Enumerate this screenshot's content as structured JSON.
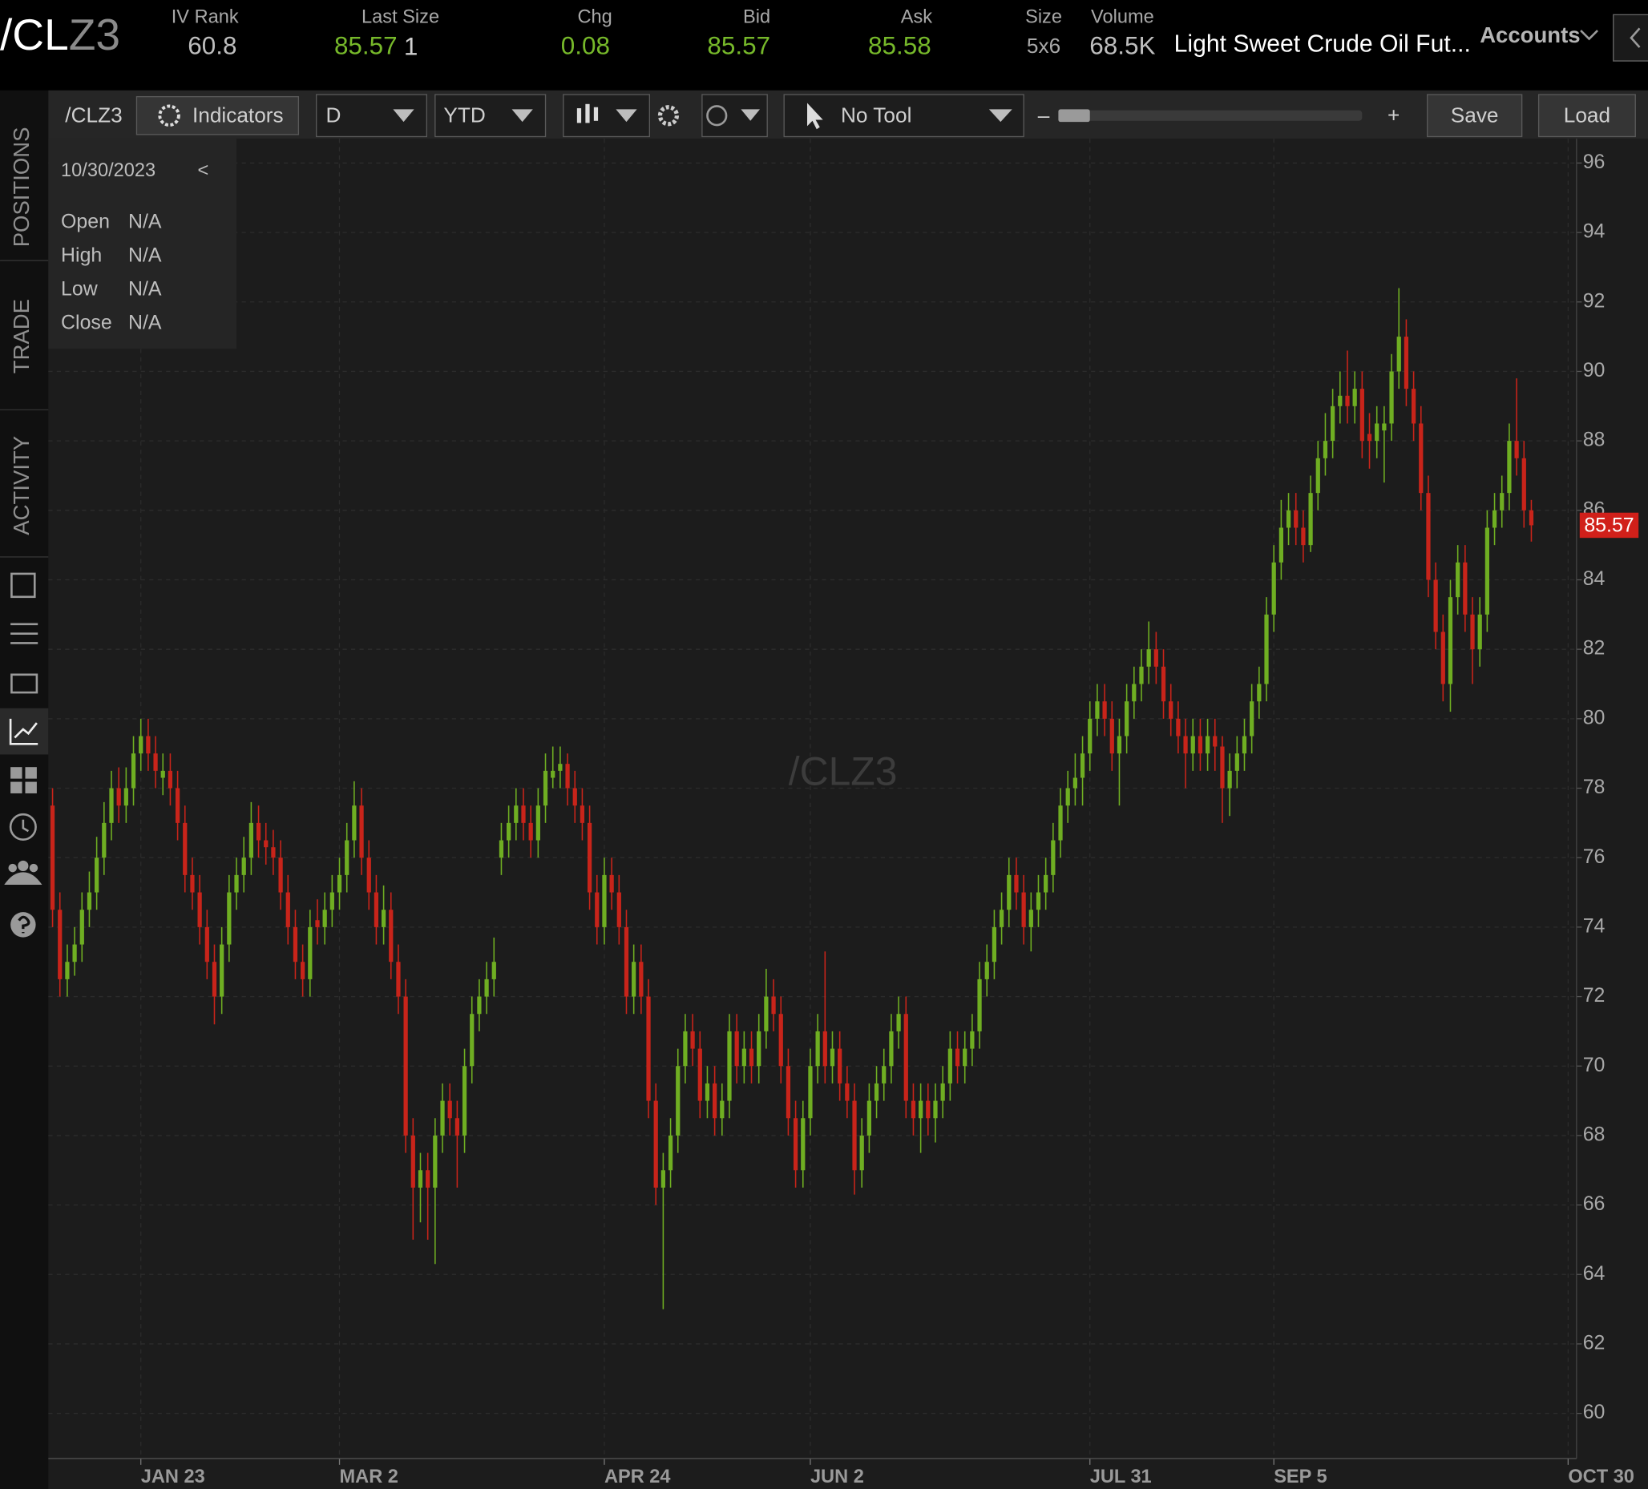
{
  "header": {
    "symbol_root": "/CL",
    "symbol_month": "Z3",
    "iv_rank_label": "IV Rank",
    "iv_rank": 60.8,
    "last_size_label": "Last Size",
    "last": 85.57,
    "size_last": 1,
    "chg_label": "Chg",
    "chg": 0.08,
    "bid_label": "Bid",
    "bid": 85.57,
    "ask_label": "Ask",
    "ask": 85.58,
    "size_label": "Size",
    "size": "5x6",
    "volume_label": "Volume",
    "volume": "68.5K",
    "description": "Light Sweet Crude Oil Fut...",
    "accounts": "Accounts"
  },
  "toolbar": {
    "symbol": "/CLZ3",
    "indicators": "Indicators",
    "aggregation": "D",
    "range": "YTD",
    "tool": "No Tool",
    "zoom_out": "–",
    "zoom_in": "+",
    "save": "Save",
    "load": "Load"
  },
  "info_panel": {
    "date": "10/30/2023",
    "collapse": "<",
    "rows": [
      {
        "label": "Open",
        "value": "N/A"
      },
      {
        "label": "High",
        "value": "N/A"
      },
      {
        "label": "Low",
        "value": "N/A"
      },
      {
        "label": "Close",
        "value": "N/A"
      }
    ]
  },
  "sidebar": {
    "tabs": [
      "POSITIONS",
      "TRADE",
      "ACTIVITY"
    ]
  },
  "chart_data": {
    "type": "candlestick",
    "watermark": "/CLZ3",
    "up_color": "#6fae22",
    "down_color": "#c8241a",
    "grid": true,
    "ylim": [
      58.7,
      96.7
    ],
    "yticks": [
      60,
      62,
      64,
      66,
      68,
      70,
      72,
      74,
      76,
      78,
      80,
      82,
      84,
      86,
      88,
      90,
      92,
      94,
      96
    ],
    "categories": [
      null,
      null,
      null,
      null,
      null,
      null,
      null,
      null,
      null,
      null,
      null,
      null,
      "JAN 23",
      null,
      null,
      null,
      null,
      null,
      null,
      null,
      null,
      null,
      null,
      null,
      null,
      null,
      null,
      null,
      null,
      null,
      null,
      null,
      null,
      null,
      null,
      null,
      null,
      null,
      null,
      "MAR 2",
      null,
      null,
      null,
      null,
      null,
      null,
      null,
      null,
      null,
      null,
      null,
      null,
      null,
      null,
      null,
      null,
      null,
      null,
      null,
      null,
      null,
      null,
      null,
      null,
      null,
      null,
      null,
      null,
      null,
      null,
      null,
      null,
      null,
      null,
      null,
      "APR 24",
      null,
      null,
      null,
      null,
      null,
      null,
      null,
      null,
      null,
      null,
      null,
      null,
      null,
      null,
      null,
      null,
      null,
      null,
      null,
      null,
      null,
      null,
      null,
      null,
      null,
      null,
      null,
      "JUN 2",
      null,
      null,
      null,
      null,
      null,
      null,
      null,
      null,
      null,
      null,
      null,
      null,
      null,
      null,
      null,
      null,
      null,
      null,
      null,
      null,
      null,
      null,
      null,
      null,
      null,
      null,
      null,
      null,
      null,
      null,
      null,
      null,
      null,
      null,
      null,
      null,
      null,
      "JUL 31",
      null,
      null,
      null,
      null,
      null,
      null,
      null,
      null,
      null,
      null,
      null,
      null,
      null,
      null,
      null,
      null,
      null,
      null,
      null,
      null,
      null,
      null,
      null,
      null,
      "SEP 5",
      null,
      null,
      null,
      null,
      null,
      null,
      null,
      null,
      null,
      null,
      null,
      null,
      null,
      null,
      null,
      null,
      null,
      null,
      null,
      null,
      null,
      null,
      null,
      null,
      null,
      null,
      null,
      null,
      null,
      null,
      null,
      null,
      null,
      null,
      null,
      null,
      null,
      null,
      null,
      "OCT 30"
    ],
    "ohlc": [
      [
        77.5,
        78,
        74,
        74.5
      ],
      [
        74.5,
        75,
        72,
        72.5
      ],
      [
        72.5,
        73.5,
        72,
        73
      ],
      [
        73,
        74,
        72.6,
        73.5
      ],
      [
        73.5,
        75,
        73,
        74.5
      ],
      [
        74.5,
        75.6,
        74,
        75
      ],
      [
        75,
        76.6,
        74.5,
        76
      ],
      [
        76,
        77.6,
        75.5,
        77
      ],
      [
        77,
        78.5,
        76.5,
        78
      ],
      [
        78,
        78.6,
        77,
        77.5
      ],
      [
        77.5,
        78.6,
        77,
        78
      ],
      [
        78,
        79.5,
        77.5,
        79
      ],
      [
        79,
        80,
        78.5,
        79.5
      ],
      [
        79.5,
        80,
        78.5,
        79
      ],
      [
        79,
        79.5,
        78,
        78.5
      ],
      [
        78.3,
        79,
        77.8,
        78.5
      ],
      [
        78.5,
        79,
        77.5,
        78
      ],
      [
        78,
        78.5,
        76.5,
        77
      ],
      [
        77,
        77.5,
        75,
        75.5
      ],
      [
        75.5,
        76,
        74.5,
        75
      ],
      [
        75,
        75.5,
        73.5,
        74
      ],
      [
        74,
        74.5,
        72.5,
        73
      ],
      [
        73,
        73.5,
        71.2,
        72
      ],
      [
        72,
        74,
        71.5,
        73.5
      ],
      [
        73.5,
        75.5,
        73,
        75
      ],
      [
        75,
        76,
        74.5,
        75.5
      ],
      [
        75.5,
        76.6,
        75,
        76
      ],
      [
        76,
        77.6,
        75.5,
        77
      ],
      [
        77,
        77.5,
        76,
        76.5
      ],
      [
        76.5,
        77,
        75.8,
        76.3
      ],
      [
        76.3,
        76.8,
        75.5,
        76
      ],
      [
        76,
        76.5,
        74.5,
        75
      ],
      [
        75,
        75.5,
        73.5,
        74
      ],
      [
        74,
        74.5,
        72.5,
        73
      ],
      [
        73,
        73.5,
        72,
        72.5
      ],
      [
        72.5,
        74.5,
        72,
        74
      ],
      [
        74.2,
        74.8,
        73.5,
        74
      ],
      [
        74,
        75,
        73.5,
        74.5
      ],
      [
        74.5,
        75.5,
        74,
        75
      ],
      [
        75,
        76,
        74.5,
        75.5
      ],
      [
        75.5,
        77,
        75,
        76.5
      ],
      [
        76.5,
        78.2,
        76,
        77.5
      ],
      [
        77.5,
        78,
        75.5,
        76
      ],
      [
        76,
        76.5,
        74.5,
        75
      ],
      [
        75,
        75.5,
        73.5,
        74
      ],
      [
        74,
        75.2,
        73.5,
        74.5
      ],
      [
        74.5,
        75,
        72.5,
        73
      ],
      [
        73,
        73.5,
        71.5,
        72
      ],
      [
        72,
        72.5,
        67.5,
        68
      ],
      [
        68,
        68.5,
        65,
        66.5
      ],
      [
        66.5,
        67.5,
        65.5,
        67
      ],
      [
        67,
        67.5,
        65,
        66.5
      ],
      [
        66.5,
        68.5,
        64.3,
        68
      ],
      [
        68,
        69.5,
        67.5,
        69
      ],
      [
        69,
        69.5,
        68,
        68.5
      ],
      [
        68.5,
        69,
        66.5,
        68
      ],
      [
        68,
        70.5,
        67.5,
        70
      ],
      [
        70,
        72,
        69.5,
        71.5
      ],
      [
        71.5,
        72.5,
        71,
        72
      ],
      [
        72,
        73,
        71.5,
        72.5
      ],
      [
        72.5,
        73.7,
        72,
        73
      ],
      [
        76,
        77,
        75.5,
        76.5
      ],
      [
        76.5,
        77.5,
        76,
        77
      ],
      [
        77,
        78,
        76.5,
        77.5
      ],
      [
        77.5,
        78,
        76.5,
        77
      ],
      [
        77,
        77.5,
        76,
        76.5
      ],
      [
        76.5,
        78,
        76,
        77.5
      ],
      [
        77.5,
        79,
        77,
        78.5
      ],
      [
        78.3,
        79.2,
        78,
        78.5
      ],
      [
        78.5,
        79.2,
        78,
        78.7
      ],
      [
        78.7,
        79,
        77.5,
        78
      ],
      [
        78,
        78.5,
        77,
        77.5
      ],
      [
        77.5,
        78,
        76.5,
        77
      ],
      [
        77,
        77.5,
        74.5,
        75
      ],
      [
        75,
        75.5,
        73.5,
        74
      ],
      [
        74,
        76,
        73.5,
        75.5
      ],
      [
        75.5,
        76,
        74.5,
        75
      ],
      [
        75,
        75.5,
        73.5,
        74
      ],
      [
        74,
        74.5,
        71.5,
        72
      ],
      [
        72,
        73.5,
        71.5,
        73
      ],
      [
        73,
        73.5,
        71.5,
        72
      ],
      [
        72,
        72.5,
        68.5,
        69
      ],
      [
        69,
        69.5,
        66,
        66.5
      ],
      [
        66.5,
        67.5,
        63,
        67
      ],
      [
        67,
        68.5,
        66.5,
        68
      ],
      [
        68,
        70.5,
        67.5,
        70
      ],
      [
        70,
        71.5,
        69.5,
        71
      ],
      [
        71,
        71.5,
        70,
        70.5
      ],
      [
        70.5,
        71,
        68.5,
        69
      ],
      [
        69,
        70,
        68.5,
        69.5
      ],
      [
        69.5,
        70,
        68,
        68.5
      ],
      [
        68.5,
        69.5,
        68,
        69
      ],
      [
        69,
        71.5,
        68.5,
        71
      ],
      [
        71,
        71.5,
        69.5,
        70
      ],
      [
        70,
        71,
        69.5,
        70.5
      ],
      [
        70.5,
        71,
        69.5,
        70
      ],
      [
        70,
        71.5,
        69.5,
        71
      ],
      [
        71,
        72.8,
        70.5,
        72
      ],
      [
        72,
        72.5,
        71,
        71.5
      ],
      [
        71.5,
        72,
        69.5,
        70
      ],
      [
        70,
        70.5,
        68,
        68.5
      ],
      [
        68.5,
        69,
        66.5,
        67
      ],
      [
        67,
        69,
        66.5,
        68.5
      ],
      [
        68.5,
        70.5,
        68,
        70
      ],
      [
        70,
        71.5,
        69.5,
        71
      ],
      [
        71,
        73.3,
        69.5,
        70
      ],
      [
        70,
        71,
        69.5,
        70.5
      ],
      [
        70.5,
        71,
        69,
        69.5
      ],
      [
        69.5,
        70,
        68.5,
        69
      ],
      [
        69,
        69.5,
        66.3,
        67
      ],
      [
        67,
        68.5,
        66.5,
        68
      ],
      [
        68,
        69.5,
        67.5,
        69
      ],
      [
        69,
        70,
        68.5,
        69.5
      ],
      [
        69.5,
        70.5,
        69,
        70
      ],
      [
        70,
        71.5,
        69.5,
        71
      ],
      [
        71,
        72,
        70.5,
        71.5
      ],
      [
        71.5,
        72,
        68.5,
        69
      ],
      [
        69,
        69.5,
        68,
        68.5
      ],
      [
        68.5,
        69.5,
        67.5,
        69
      ],
      [
        69,
        69.5,
        68,
        68.5
      ],
      [
        68.5,
        69.5,
        67.8,
        69
      ],
      [
        69,
        70,
        68.5,
        69.5
      ],
      [
        69.5,
        71,
        69,
        70.5
      ],
      [
        70.5,
        71,
        69.5,
        70
      ],
      [
        70,
        71,
        69.5,
        70.5
      ],
      [
        70.5,
        71.5,
        70,
        71
      ],
      [
        71,
        73,
        70.5,
        72.5
      ],
      [
        72.5,
        73.5,
        72,
        73
      ],
      [
        73,
        74.5,
        72.5,
        74
      ],
      [
        74,
        75,
        73.5,
        74.5
      ],
      [
        74.5,
        76,
        74,
        75.5
      ],
      [
        75.5,
        76,
        74.5,
        75
      ],
      [
        75,
        75.5,
        73.5,
        74
      ],
      [
        74,
        75,
        73.3,
        74.5
      ],
      [
        74.5,
        75.5,
        74,
        75
      ],
      [
        75,
        76,
        74.5,
        75.5
      ],
      [
        75.5,
        77,
        75,
        76.5
      ],
      [
        76.5,
        78,
        76,
        77.5
      ],
      [
        77.5,
        78.5,
        77,
        78
      ],
      [
        78,
        79,
        77.5,
        78.3
      ],
      [
        78.3,
        79.5,
        77.5,
        79
      ],
      [
        79,
        80.5,
        78.5,
        80
      ],
      [
        80,
        81,
        79.5,
        80.5
      ],
      [
        80.5,
        81,
        79.5,
        80
      ],
      [
        80,
        80.5,
        78.5,
        79
      ],
      [
        79,
        80,
        77.5,
        79.5
      ],
      [
        79.5,
        81,
        79,
        80.5
      ],
      [
        80.5,
        81.5,
        80,
        81
      ],
      [
        81,
        82,
        80.5,
        81.5
      ],
      [
        81.5,
        82.8,
        81,
        82
      ],
      [
        82,
        82.5,
        81,
        81.5
      ],
      [
        81.5,
        82,
        80,
        80.5
      ],
      [
        80.5,
        81,
        79.5,
        80
      ],
      [
        80,
        80.5,
        79,
        79.5
      ],
      [
        79.5,
        80,
        78,
        79
      ],
      [
        79,
        80,
        78.5,
        79.5
      ],
      [
        79.5,
        80,
        78.5,
        79
      ],
      [
        79,
        80,
        78.5,
        79.5
      ],
      [
        79.5,
        80,
        78.5,
        79.2
      ],
      [
        79.2,
        79.5,
        77,
        78
      ],
      [
        78,
        79,
        77.2,
        78.5
      ],
      [
        78.5,
        79.5,
        78,
        79
      ],
      [
        79,
        80,
        78.5,
        79.5
      ],
      [
        79.5,
        81,
        79,
        80.5
      ],
      [
        80.5,
        81.5,
        80,
        81
      ],
      [
        81,
        83.5,
        80.5,
        83
      ],
      [
        83,
        85,
        82.5,
        84.5
      ],
      [
        84.5,
        86.3,
        84,
        85.5
      ],
      [
        85.5,
        86.5,
        85,
        86
      ],
      [
        86,
        86.5,
        85,
        85.5
      ],
      [
        85.5,
        86,
        84.5,
        85
      ],
      [
        85,
        87,
        84.8,
        86.5
      ],
      [
        86.5,
        88,
        86,
        87.5
      ],
      [
        87.5,
        88.8,
        87,
        88
      ],
      [
        88,
        89.5,
        87.5,
        89
      ],
      [
        89,
        90,
        88.5,
        89.3
      ],
      [
        89.3,
        90.6,
        88.5,
        89
      ],
      [
        89,
        90,
        88.5,
        89.5
      ],
      [
        89.5,
        90,
        87.5,
        88
      ],
      [
        88.2,
        88.8,
        87.2,
        88
      ],
      [
        88,
        89,
        87.5,
        88.5
      ],
      [
        88.3,
        89,
        86.8,
        88.5
      ],
      [
        88.5,
        90.5,
        88,
        90
      ],
      [
        90,
        92.4,
        89.5,
        91
      ],
      [
        91,
        91.5,
        89,
        89.5
      ],
      [
        89.5,
        90,
        88,
        88.5
      ],
      [
        88.5,
        89,
        86,
        86.5
      ],
      [
        86.5,
        87,
        83.5,
        84
      ],
      [
        84,
        84.5,
        82,
        82.5
      ],
      [
        82.5,
        83,
        80.5,
        81
      ],
      [
        81,
        84,
        80.2,
        83.5
      ],
      [
        83.5,
        85,
        83,
        84.5
      ],
      [
        84.5,
        85,
        82.5,
        83
      ],
      [
        83,
        83.5,
        81,
        82
      ],
      [
        82,
        83.5,
        81.5,
        83
      ],
      [
        83,
        86,
        82.5,
        85.5
      ],
      [
        85.5,
        86.5,
        85,
        86
      ],
      [
        86,
        87,
        85.5,
        86.5
      ],
      [
        86.5,
        88.5,
        86,
        88
      ],
      [
        88,
        89.8,
        87,
        87.5
      ],
      [
        87.5,
        88,
        85.5,
        86
      ],
      [
        86,
        86.3,
        85.1,
        85.57
      ],
      null,
      null,
      null,
      null,
      null
    ]
  }
}
